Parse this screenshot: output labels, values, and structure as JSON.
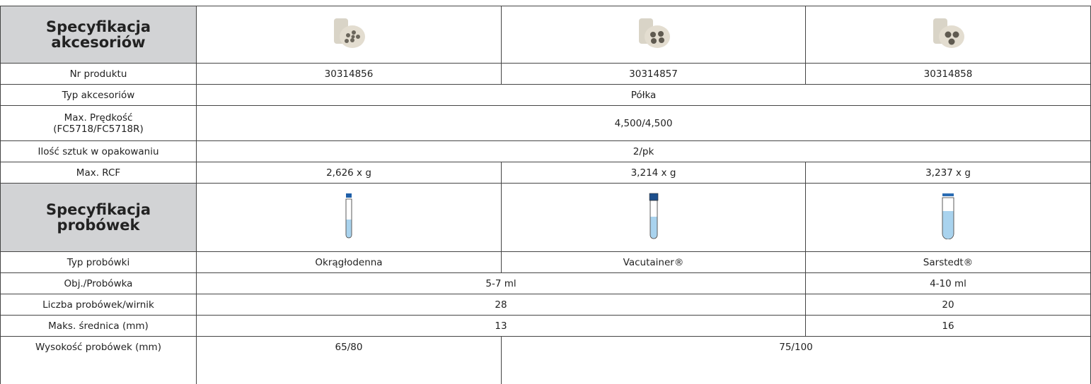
{
  "table": {
    "sections": [
      {
        "title": "Specyfikacja akcesoriów"
      },
      {
        "title": "Specyfikacja probówek"
      }
    ],
    "rows": [
      [
        "Nr produktu",
        "30314856",
        "30314857",
        "30314858"
      ],
      [
        "Typ akcesoriów",
        "Półka"
      ],
      [
        "Max. Prędkość (FC5718/FC5718R)",
        "4,500/4,500"
      ],
      [
        "Ilość sztuk w opakowaniu",
        "2/pk"
      ],
      [
        "Max. RCF",
        "2,626 x g",
        "3,214 x g",
        "3,237 x g"
      ],
      [
        "Typ probówki",
        "Okrągłodenna",
        "Vacutainer®",
        "Sarstedt®"
      ],
      [
        "Obj./Probówka",
        "5-7 ml",
        "4-10 ml"
      ],
      [
        "Liczba probówek/wirnik",
        "28",
        "20"
      ],
      [
        "Maks. średnica (mm)",
        "13",
        "16"
      ],
      [
        "Wysokość probówek (mm)",
        "65/80",
        "75/100"
      ]
    ]
  }
}
